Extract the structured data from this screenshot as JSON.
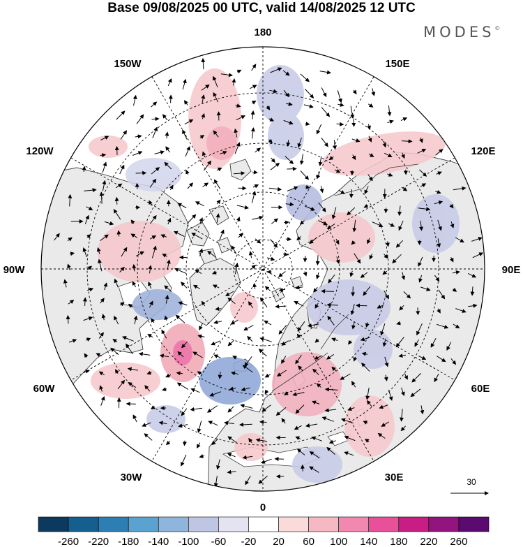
{
  "title": "Base 09/08/2025 00 UTC, valid 14/08/2025 12 UTC",
  "logo": "MODES",
  "logo_mark": "©",
  "longitude_labels": {
    "lon_180": "180",
    "lon_150W": "150W",
    "lon_150E": "150E",
    "lon_120W": "120W",
    "lon_120E": "120E",
    "lon_90W": "90W",
    "lon_90E": "90E",
    "lon_60W": "60W",
    "lon_60E": "60E",
    "lon_30W": "30W",
    "lon_30E": "30E",
    "lon_0": "0"
  },
  "reference_vector_label": "30",
  "colorbar": {
    "ticks": [
      "-260",
      "-220",
      "-180",
      "-140",
      "-100",
      "-60",
      "-20",
      "20",
      "60",
      "100",
      "140",
      "180",
      "220",
      "260"
    ],
    "colors": [
      "#0b3a5e",
      "#155f8f",
      "#2d7fb3",
      "#5aa2cf",
      "#8fb5dc",
      "#bfc6e3",
      "#e3e3f2",
      "#ffffff",
      "#fbdada",
      "#f6b8c3",
      "#f287b0",
      "#e8509a",
      "#c81d84",
      "#93137f",
      "#5b0a6f"
    ]
  },
  "colors": {
    "land": "#eaeaea",
    "ocean": "#ffffff",
    "coast": "#404040",
    "anomaly_positive": "#f6c8cc",
    "anomaly_positive_strong": "#ee8fb8",
    "anomaly_negative": "#c7cbe6",
    "anomaly_negative_strong": "#8fa8d8"
  }
}
